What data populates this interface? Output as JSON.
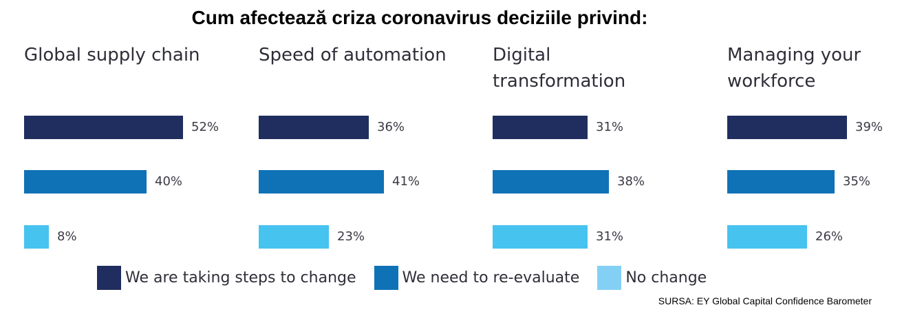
{
  "chart_data": {
    "type": "bar",
    "orientation": "horizontal",
    "title": "Cum afectează criza coronavirus deciziile privind:",
    "source": "SURSA: EY Global Capital Confidence Barometer",
    "value_suffix": "%",
    "xlim": [
      0,
      100
    ],
    "grid": false,
    "legend_position": "bottom",
    "series": [
      {
        "name": "We are taking steps to change",
        "color": "#1f2e5e"
      },
      {
        "name": "We need to re-evaluate",
        "color": "#0f72b6"
      },
      {
        "name": "No change",
        "color": "#47c3f0"
      }
    ],
    "panels": [
      {
        "category": "Global supply chain",
        "values": [
          52,
          40,
          8
        ]
      },
      {
        "category": "Speed of automation",
        "values": [
          36,
          41,
          23
        ]
      },
      {
        "category": "Digital transformation",
        "values": [
          31,
          38,
          31
        ]
      },
      {
        "category": "Managing your workforce",
        "values": [
          39,
          35,
          26
        ]
      }
    ]
  },
  "legend_colors": [
    "#1f2e5e",
    "#0f72b6",
    "#84d0f5"
  ]
}
